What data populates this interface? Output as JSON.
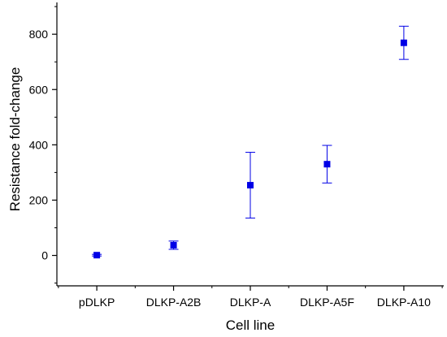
{
  "chart_data": {
    "type": "scatter",
    "title": "",
    "xlabel": "Cell line",
    "ylabel": "Resistance fold-change",
    "categories": [
      "pDLKP",
      "DLKP-A2B",
      "DLKP-A",
      "DLKP-A5F",
      "DLKP-A10"
    ],
    "series": [
      {
        "values": [
          1,
          37,
          254,
          330,
          769
        ],
        "errors": [
          3,
          15,
          119,
          68,
          60
        ],
        "color": "#0000e6",
        "marker": "square"
      }
    ],
    "ylim": [
      -110,
      915
    ],
    "yticks": [
      0,
      200,
      400,
      600,
      800
    ],
    "grid": false,
    "legend": "none"
  }
}
